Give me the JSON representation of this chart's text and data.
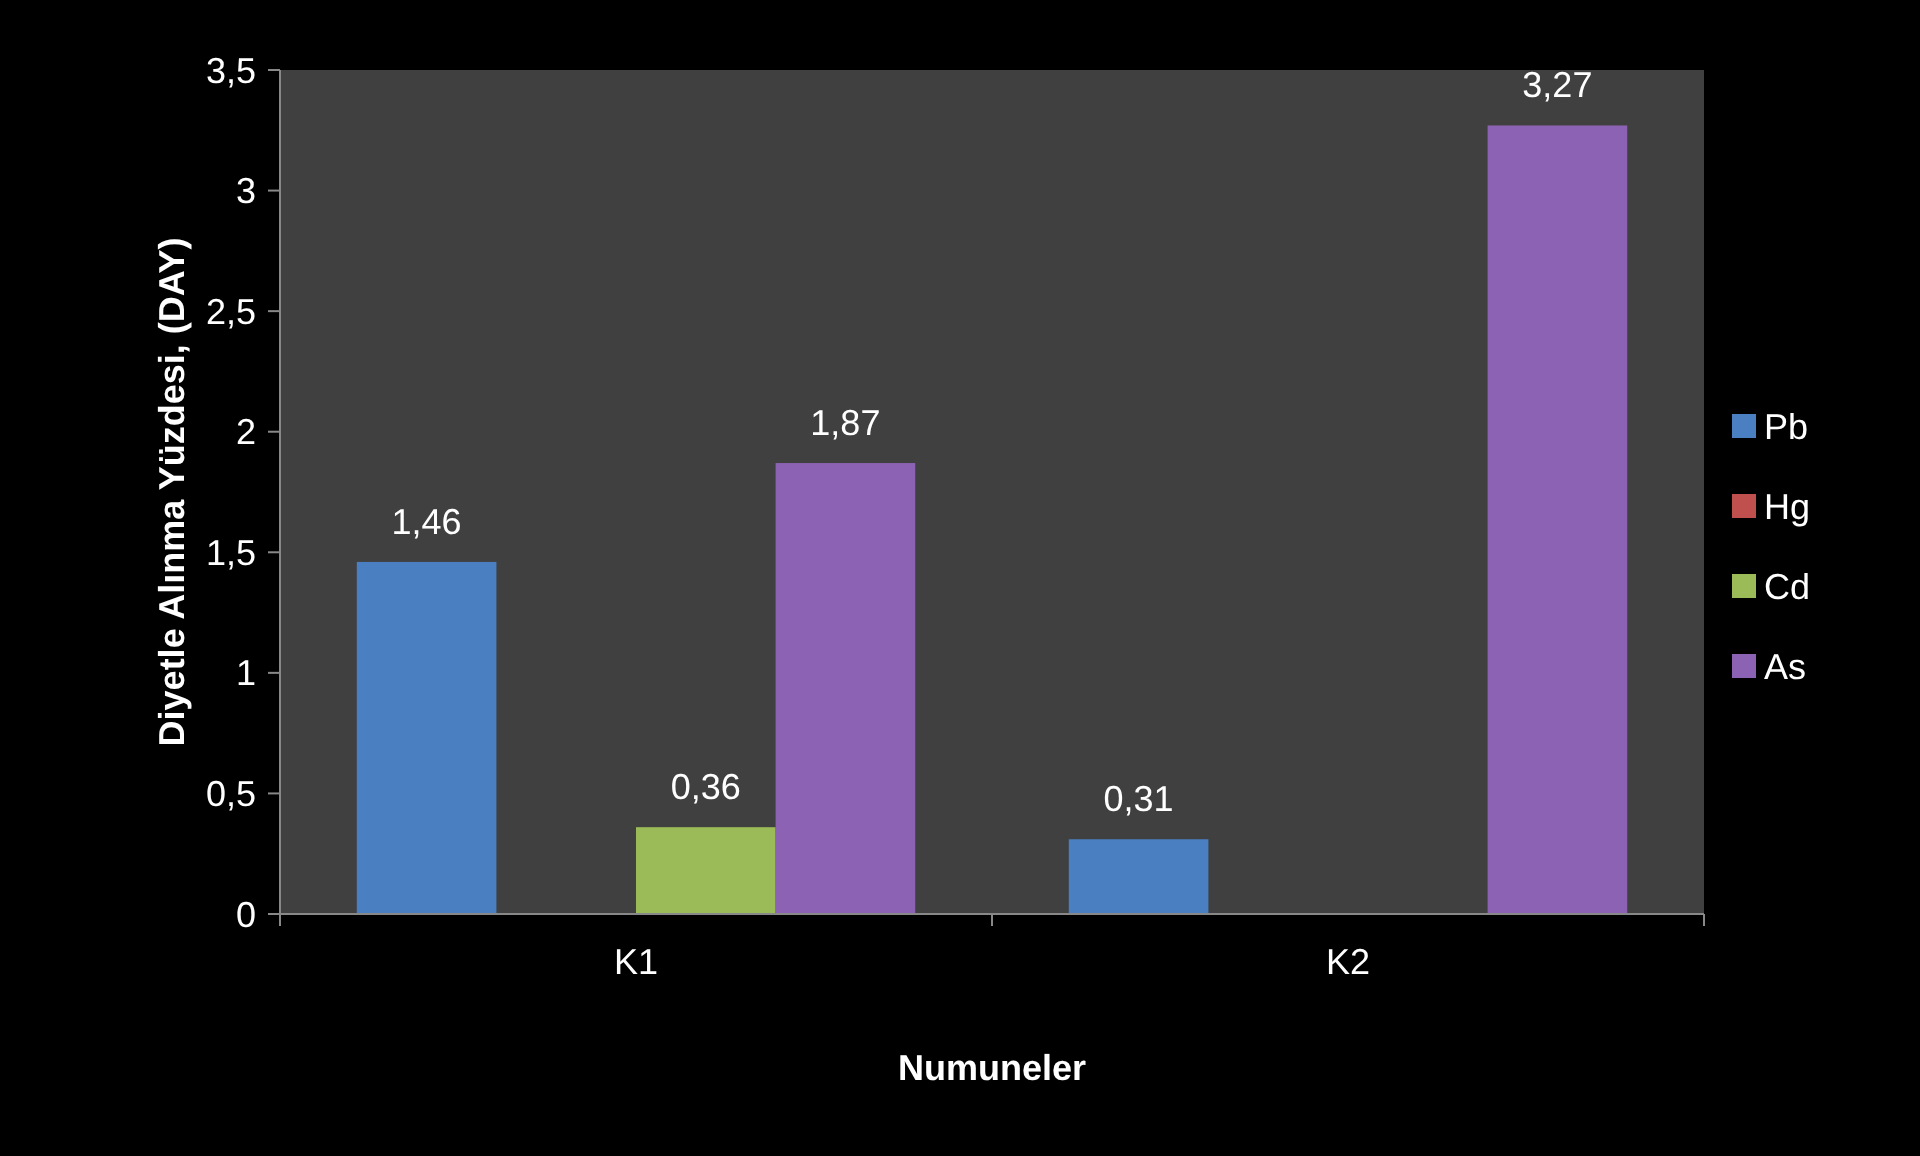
{
  "chart_data": {
    "type": "bar",
    "xlabel": "Numuneler",
    "ylabel": "Diyetle Alınma Yüzdesi, (DAY)",
    "categories": [
      "K1",
      "K2"
    ],
    "series": [
      {
        "name": "Pb",
        "color": "#4a7fc1",
        "values": [
          1.46,
          0.31
        ],
        "value_labels": [
          "1,46",
          "0,31"
        ]
      },
      {
        "name": "Hg",
        "color": "#c0504d",
        "values": [
          null,
          null
        ],
        "value_labels": [
          null,
          null
        ]
      },
      {
        "name": "Cd",
        "color": "#9bbb59",
        "values": [
          0.36,
          null
        ],
        "value_labels": [
          "0,36",
          null
        ]
      },
      {
        "name": "As",
        "color": "#8c63b4",
        "values": [
          1.87,
          3.27
        ],
        "value_labels": [
          "1,87",
          "3,27"
        ]
      }
    ],
    "ylim": [
      0,
      3.5
    ],
    "yticks": [
      0,
      {
        "value": 0.5,
        "label": "0,5"
      },
      1,
      {
        "value": 1.5,
        "label": "1,5"
      },
      2,
      {
        "value": 2.5,
        "label": "2,5"
      },
      3,
      {
        "value": 3.5,
        "label": "3,5"
      }
    ],
    "grid": false,
    "legend": "right"
  }
}
